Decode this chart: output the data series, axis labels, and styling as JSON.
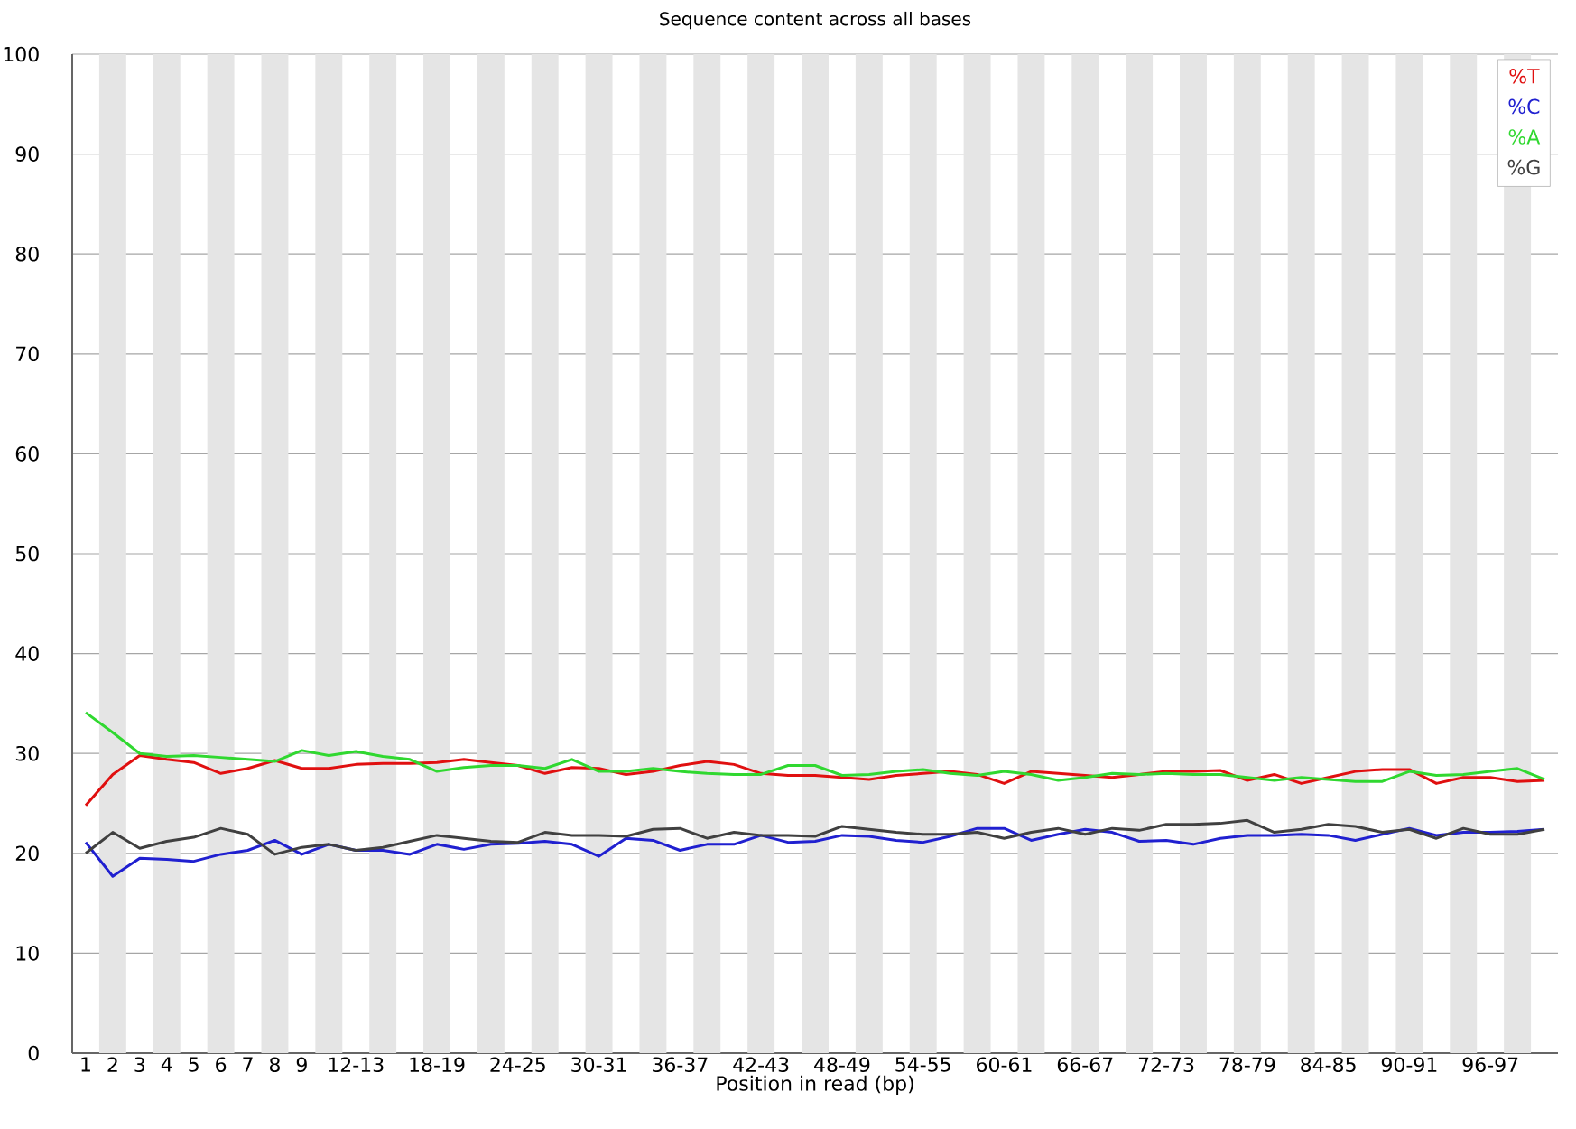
{
  "chart_data": {
    "type": "line",
    "title": "Sequence content across all bases",
    "xlabel": "Position in read (bp)",
    "categories": [
      "1",
      "2",
      "3",
      "4",
      "5",
      "6",
      "7",
      "8",
      "9",
      null,
      "12-13",
      null,
      null,
      "18-19",
      null,
      null,
      "24-25",
      null,
      null,
      "30-31",
      null,
      null,
      "36-37",
      null,
      null,
      "42-43",
      null,
      null,
      "48-49",
      null,
      null,
      "54-55",
      null,
      null,
      "60-61",
      null,
      null,
      "66-67",
      null,
      null,
      "72-73",
      null,
      null,
      "78-79",
      null,
      null,
      "84-85",
      null,
      null,
      "90-91",
      null,
      null,
      "96-97",
      null,
      null
    ],
    "series": [
      {
        "name": "%T",
        "color": "#e01010",
        "values": [
          24.8,
          27.9,
          29.8,
          29.4,
          29.1,
          28.0,
          28.5,
          29.3,
          28.5,
          28.5,
          28.9,
          29.0,
          29.0,
          29.1,
          29.4,
          29.1,
          28.8,
          28.0,
          28.6,
          28.5,
          27.9,
          28.2,
          28.8,
          29.2,
          28.9,
          28.0,
          27.8,
          27.8,
          27.6,
          27.4,
          27.8,
          28.0,
          28.2,
          27.9,
          27.0,
          28.2,
          28.0,
          27.8,
          27.6,
          27.9,
          28.2,
          28.2,
          28.3,
          27.3,
          27.9,
          27.0,
          27.6,
          28.2,
          28.4,
          28.4,
          27.0,
          27.6,
          27.6,
          27.2,
          27.3
        ]
      },
      {
        "name": "%C",
        "color": "#2020d0",
        "values": [
          21.1,
          17.7,
          19.5,
          19.4,
          19.2,
          19.9,
          20.3,
          21.3,
          19.9,
          20.9,
          20.3,
          20.3,
          19.9,
          20.9,
          20.4,
          20.9,
          21.0,
          21.2,
          20.9,
          19.7,
          21.5,
          21.3,
          20.3,
          20.9,
          20.9,
          21.8,
          21.1,
          21.2,
          21.8,
          21.7,
          21.3,
          21.1,
          21.7,
          22.5,
          22.5,
          21.3,
          21.9,
          22.4,
          22.1,
          21.2,
          21.3,
          20.9,
          21.5,
          21.8,
          21.8,
          21.9,
          21.8,
          21.3,
          21.9,
          22.5,
          21.8,
          22.1,
          22.1,
          22.2,
          22.4
        ]
      },
      {
        "name": "%A",
        "color": "#30d830",
        "values": [
          34.1,
          32.1,
          30.0,
          29.7,
          29.8,
          29.6,
          29.4,
          29.2,
          30.3,
          29.8,
          30.2,
          29.7,
          29.4,
          28.2,
          28.6,
          28.8,
          28.8,
          28.5,
          29.4,
          28.2,
          28.2,
          28.5,
          28.2,
          28.0,
          27.9,
          27.9,
          28.8,
          28.8,
          27.8,
          27.9,
          28.2,
          28.4,
          28.0,
          27.8,
          28.2,
          27.9,
          27.3,
          27.6,
          28.0,
          27.9,
          28.0,
          27.9,
          27.9,
          27.6,
          27.3,
          27.6,
          27.4,
          27.2,
          27.2,
          28.2,
          27.8,
          27.9,
          28.2,
          28.5,
          27.4
        ]
      },
      {
        "name": "%G",
        "color": "#404040",
        "values": [
          20.0,
          22.1,
          20.5,
          21.2,
          21.6,
          22.5,
          21.9,
          19.9,
          20.6,
          20.9,
          20.3,
          20.6,
          21.2,
          21.8,
          21.5,
          21.2,
          21.1,
          22.1,
          21.8,
          21.8,
          21.7,
          22.4,
          22.5,
          21.5,
          22.1,
          21.8,
          21.8,
          21.7,
          22.7,
          22.4,
          22.1,
          21.9,
          21.9,
          22.1,
          21.5,
          22.1,
          22.5,
          21.9,
          22.5,
          22.3,
          22.9,
          22.9,
          23.0,
          23.3,
          22.1,
          22.4,
          22.9,
          22.7,
          22.1,
          22.4,
          21.5,
          22.5,
          21.9,
          21.9,
          22.4
        ]
      }
    ],
    "ylim": [
      0,
      100
    ],
    "yticks": [
      0,
      10,
      20,
      30,
      40,
      50,
      60,
      70,
      80,
      90,
      100
    ],
    "grid": "y",
    "legend": "top right",
    "marker": "none",
    "line_style": "solid"
  }
}
